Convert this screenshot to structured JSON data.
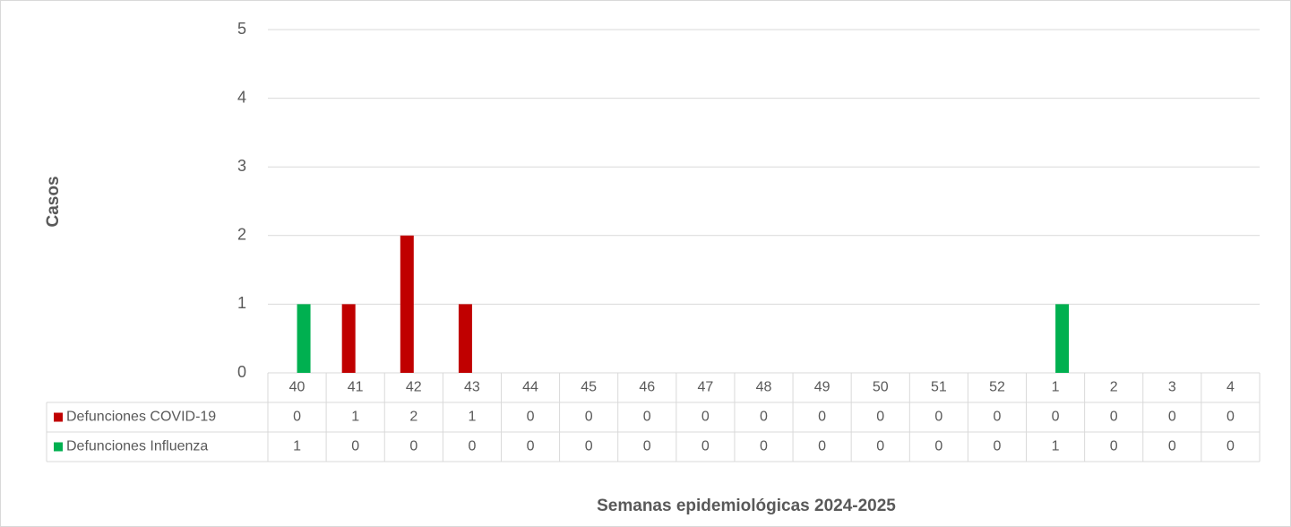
{
  "chart_data": {
    "type": "bar",
    "categories": [
      "40",
      "41",
      "42",
      "43",
      "44",
      "45",
      "46",
      "47",
      "48",
      "49",
      "50",
      "51",
      "52",
      "1",
      "2",
      "3",
      "4"
    ],
    "series": [
      {
        "name": "Defunciones COVID-19",
        "color": "#c00000",
        "values": [
          0,
          1,
          2,
          1,
          0,
          0,
          0,
          0,
          0,
          0,
          0,
          0,
          0,
          0,
          0,
          0,
          0
        ]
      },
      {
        "name": "Defunciones Influenza",
        "color": "#00b050",
        "values": [
          1,
          0,
          0,
          0,
          0,
          0,
          0,
          0,
          0,
          0,
          0,
          0,
          0,
          1,
          0,
          0,
          0
        ]
      }
    ],
    "ylim": [
      0,
      5
    ],
    "yticks": [
      0,
      1,
      2,
      3,
      4,
      5
    ],
    "grid": true,
    "y_label": "Casos",
    "x_label": "Semanas epidemiológicas 2024-2025"
  }
}
